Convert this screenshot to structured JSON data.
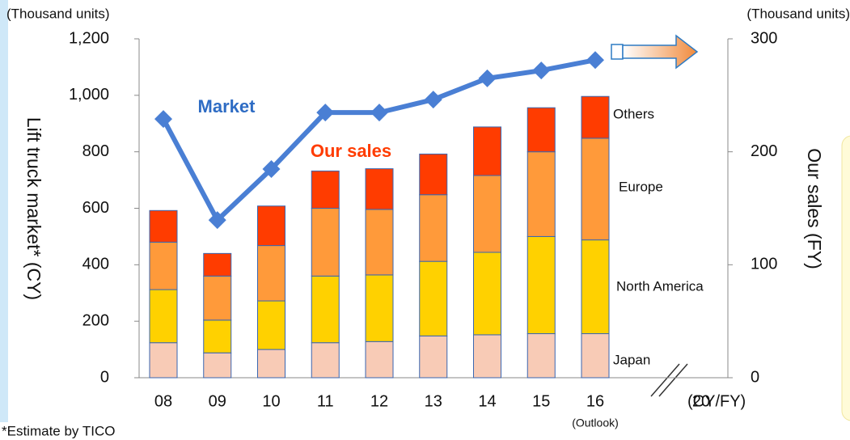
{
  "chart_data": {
    "type": "bar",
    "categories": [
      "08",
      "09",
      "10",
      "11",
      "12",
      "13",
      "14",
      "15",
      "16",
      "20"
    ],
    "category_note": "(Outlook)",
    "x_unit": "(CY/FY)",
    "ylabel": "Lift truck market* (CY)",
    "y2label": "Our sales (FY)",
    "y_unit": "(Thousand units)",
    "y2_unit": "(Thousand units)",
    "ylim": [
      0,
      1200
    ],
    "yticks": [
      0,
      200,
      400,
      600,
      800,
      {
        "value": 1000,
        "label": "1,000"
      },
      {
        "value": 1200,
        "label": "1,200"
      }
    ],
    "y2lim": [
      0,
      300
    ],
    "y2ticks": [
      0,
      100,
      200,
      300
    ],
    "stack_label": "Our sales",
    "footnote": "*Estimate by TICO",
    "series": [
      {
        "name": "Japan",
        "color": "#f8cbb6",
        "axis": "y2",
        "values": [
          31,
          22,
          25,
          31,
          32,
          37,
          38,
          39,
          39,
          null
        ]
      },
      {
        "name": "North America",
        "color": "#ffd100",
        "axis": "y2",
        "values": [
          47,
          29,
          43,
          59,
          59,
          66,
          73,
          86,
          83,
          null
        ]
      },
      {
        "name": "Europe",
        "color": "#ff9a3a",
        "axis": "y2",
        "values": [
          42,
          39,
          49,
          60,
          58,
          59,
          68,
          75,
          90,
          null
        ]
      },
      {
        "name": "Others",
        "color": "#ff3c00",
        "axis": "y2",
        "values": [
          28,
          20,
          35,
          33,
          36,
          36,
          43,
          39,
          37,
          null
        ]
      },
      {
        "name": "Market",
        "type": "line",
        "color": "#4a7fd4",
        "values": [
          916,
          558,
          739,
          939,
          939,
          985,
          1060,
          1088,
          1125,
          null
        ]
      }
    ]
  }
}
